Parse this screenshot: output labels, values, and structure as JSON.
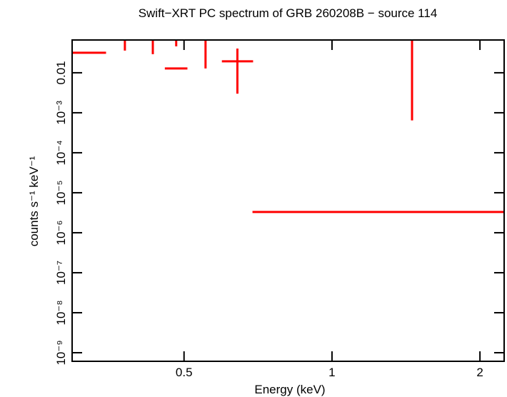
{
  "chart_data": {
    "type": "errorbar",
    "title": "Swift−XRT PC spectrum of GRB 260208B − source 114",
    "x_label": "Energy (keV)",
    "y_label": "counts s⁻¹ keV⁻¹",
    "x_log": true,
    "y_log": true,
    "xlim": [
      0.296,
      2.24
    ],
    "ylim": [
      6.1e-10,
      0.066
    ],
    "xticks": [
      0.5,
      1,
      2
    ],
    "yticks": [
      0.01,
      {
        "value": 0.001,
        "label": "10⁻³"
      },
      {
        "value": 0.0001,
        "label": "10⁻⁴"
      },
      {
        "value": 1e-05,
        "label": "10⁻⁵"
      },
      {
        "value": 1e-06,
        "label": "10⁻⁶"
      },
      {
        "value": 1e-07,
        "label": "10⁻⁷"
      },
      {
        "value": 1e-08,
        "label": "10⁻⁸"
      },
      {
        "value": 1e-09,
        "label": "10⁻⁹"
      }
    ],
    "series": [
      {
        "color": "#ff0000",
        "x": [
          0.322,
          0.379,
          0.432,
          0.482,
          0.553,
          0.642,
          1.455
        ],
        "xerr_low": [
          0.026,
          0.02,
          0.02,
          0.025,
          0.02,
          0.045,
          0.766
        ],
        "xerr_high": [
          0.025,
          0.02,
          0.02,
          0.026,
          0.02,
          0.049,
          0.785
        ],
        "values": [
          0.0316,
          0,
          0,
          0.0128,
          0,
          0.0193,
          3.3e-06
        ],
        "yerr_low": [
          0.0316,
          0,
          0,
          0.0128,
          0,
          0.0163,
          3.3e-06
        ],
        "yerr_high": [
          0.048,
          0.0358,
          0.0291,
          0.033,
          0.0128,
          0.021,
          0.00064
        ]
      }
    ]
  }
}
